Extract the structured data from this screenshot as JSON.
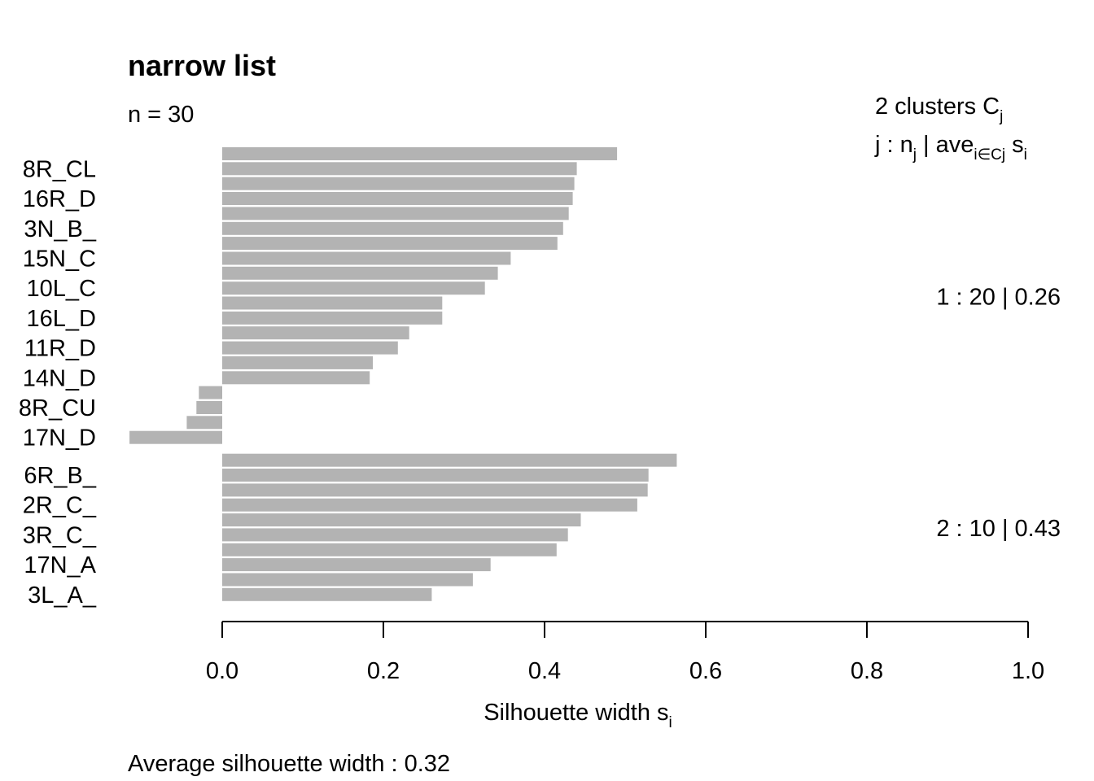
{
  "chart_data": {
    "type": "bar",
    "orientation": "horizontal",
    "title": "narrow list",
    "n_label": "n = 30",
    "xlabel": "Silhouette width s",
    "xlabel_sub": "i",
    "xlim": [
      0,
      1
    ],
    "xticks": [
      "0.0",
      "0.2",
      "0.4",
      "0.6",
      "0.8",
      "1.0"
    ],
    "bar_color": "#b3b3b3",
    "header": {
      "line1": "2  clusters  C",
      "line1_sub": "j",
      "line2_a": "j :  n",
      "line2_a_sub": "j",
      "line2_b": " | ave",
      "line2_b_sub": "i∈Cj",
      "line2_c": "  s",
      "line2_c_sub": "i"
    },
    "clusters": [
      {
        "summary": "1 :   20  |  0.26",
        "values": [
          0.49,
          0.44,
          0.437,
          0.435,
          0.43,
          0.423,
          0.416,
          0.358,
          0.342,
          0.326,
          0.273,
          0.273,
          0.232,
          0.218,
          0.187,
          0.183,
          -0.029,
          -0.032,
          -0.044,
          -0.115
        ],
        "labels": [
          "",
          "8R_CL",
          "",
          "16R_D",
          "",
          "3N_B_",
          "",
          "15N_C",
          "",
          "10L_C",
          "",
          "16L_D",
          "",
          "11R_D",
          "",
          "14N_D",
          "",
          "8R_CU",
          "",
          "17N_D"
        ]
      },
      {
        "summary": "2 :   10  |  0.43",
        "values": [
          0.564,
          0.529,
          0.528,
          0.515,
          0.445,
          0.429,
          0.415,
          0.333,
          0.311,
          0.26
        ],
        "labels": [
          "",
          "6R_B_",
          "",
          "2R_C_",
          "",
          "3R_C_",
          "",
          "17N_A",
          "",
          "3L_A_"
        ]
      }
    ],
    "footer": "Average silhouette width :  0.32"
  }
}
